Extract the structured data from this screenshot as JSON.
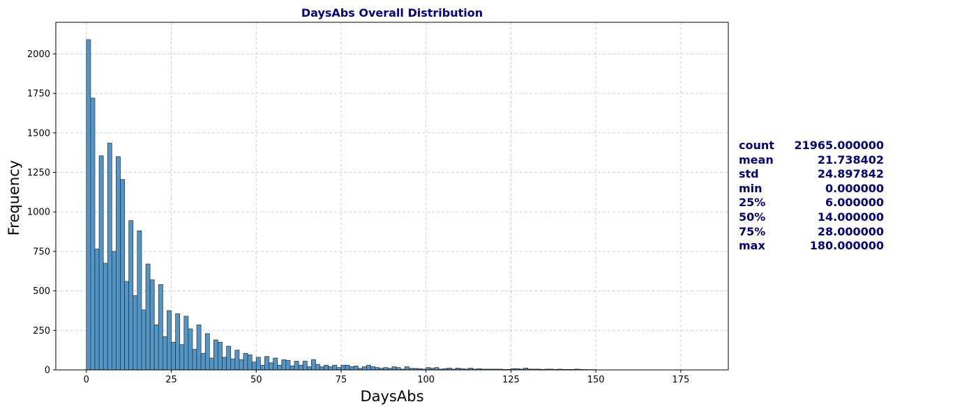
{
  "chart_data": {
    "type": "bar",
    "title": "DaysAbs Overall Distribution",
    "xlabel": "DaysAbs",
    "ylabel": "Frequency",
    "xlim": [
      -9,
      189
    ],
    "ylim": [
      0,
      2200
    ],
    "xticks": [
      0,
      25,
      50,
      75,
      100,
      125,
      150,
      175
    ],
    "yticks": [
      0,
      250,
      500,
      750,
      1000,
      1250,
      1500,
      1750,
      2000
    ],
    "grid": true,
    "bin_width": 1.25,
    "bin_start": 0,
    "values": [
      2090,
      1720,
      765,
      1355,
      675,
      1435,
      750,
      1350,
      1205,
      560,
      945,
      470,
      880,
      380,
      670,
      570,
      285,
      540,
      210,
      375,
      175,
      355,
      160,
      340,
      260,
      130,
      285,
      105,
      230,
      75,
      190,
      175,
      80,
      150,
      70,
      125,
      65,
      105,
      95,
      50,
      80,
      30,
      85,
      45,
      75,
      30,
      65,
      60,
      25,
      55,
      30,
      55,
      20,
      65,
      35,
      20,
      30,
      20,
      30,
      15,
      30,
      30,
      20,
      25,
      10,
      20,
      30,
      20,
      15,
      10,
      15,
      10,
      20,
      15,
      5,
      20,
      10,
      10,
      8,
      5,
      15,
      10,
      15,
      5,
      8,
      12,
      5,
      12,
      8,
      5,
      12,
      5,
      8,
      5,
      5,
      5,
      5,
      5,
      3,
      3,
      8,
      8,
      5,
      12,
      5,
      5,
      5,
      3,
      5,
      5,
      3,
      5,
      3,
      3,
      3,
      5,
      3,
      2,
      2,
      2
    ],
    "bar_color": "#5196c7",
    "edge_color": "#2b2b2b",
    "text_color": "#00007f"
  },
  "stats": [
    {
      "name": "count",
      "value": "21965.000000"
    },
    {
      "name": "mean",
      "value": "21.738402"
    },
    {
      "name": "std",
      "value": "24.897842"
    },
    {
      "name": "min",
      "value": "0.000000"
    },
    {
      "name": "25%",
      "value": "6.000000"
    },
    {
      "name": "50%",
      "value": "14.000000"
    },
    {
      "name": "75%",
      "value": "28.000000"
    },
    {
      "name": "max",
      "value": "180.000000"
    }
  ]
}
